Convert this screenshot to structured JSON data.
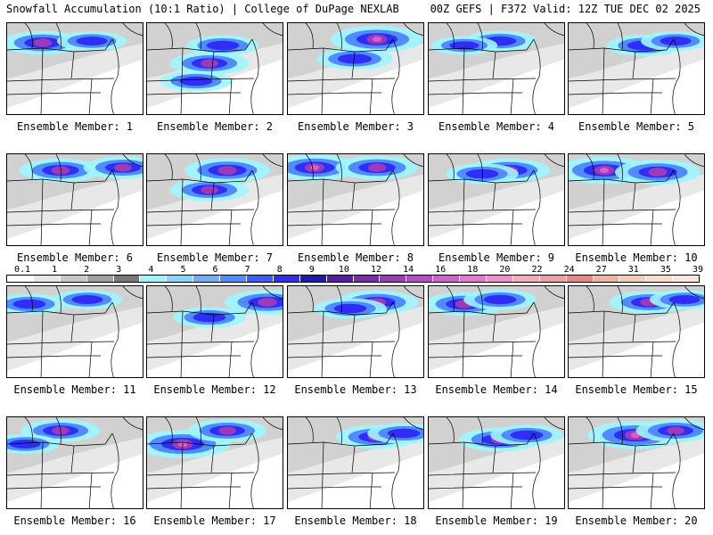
{
  "header": {
    "left": "Snowfall Accumulation (10:1 Ratio) | College of DuPage NEXLAB",
    "right": "00Z GEFS | F372 Valid: 12Z TUE DEC 02 2025"
  },
  "legend": {
    "labels": [
      "0.1",
      "1",
      "2",
      "3",
      "4",
      "5",
      "6",
      "7",
      "8",
      "9",
      "10",
      "12",
      "14",
      "16",
      "18",
      "20",
      "22",
      "24",
      "27",
      "31",
      "35",
      "39"
    ],
    "colors": [
      "#ffffff",
      "#e6e6e6",
      "#c8c8c8",
      "#a0a0a0",
      "#787878",
      "#9ff5ff",
      "#84d6ff",
      "#6eb0ff",
      "#4f8cff",
      "#3b5cff",
      "#2e2ef5",
      "#1b1bb3",
      "#5a1aa8",
      "#7a2aae",
      "#9d3ab8",
      "#b84cc4",
      "#d45fd0",
      "#e677d6",
      "#f090cc",
      "#f5aab8",
      "#f0a0a0",
      "#e88a80",
      "#f0b4a0",
      "#f5cdb4",
      "#fadcc8",
      "#fce6dc"
    ]
  },
  "members": [
    {
      "label": "Ensemble Member: 1",
      "snow": [
        [
          40,
          22,
          0.9
        ],
        [
          95,
          20,
          0.5
        ]
      ]
    },
    {
      "label": "Ensemble Member: 2",
      "snow": [
        [
          70,
          45,
          0.8
        ],
        [
          55,
          65,
          0.6
        ],
        [
          85,
          25,
          0.6
        ]
      ]
    },
    {
      "label": "Ensemble Member: 3",
      "snow": [
        [
          100,
          18,
          1.2
        ],
        [
          75,
          40,
          0.7
        ]
      ]
    },
    {
      "label": "Ensemble Member: 4",
      "snow": [
        [
          80,
          20,
          0.6
        ],
        [
          40,
          25,
          0.4
        ]
      ]
    },
    {
      "label": "Ensemble Member: 5",
      "snow": [
        [
          85,
          25,
          0.7
        ],
        [
          120,
          20,
          0.5
        ]
      ]
    },
    {
      "label": "Ensemble Member: 6",
      "snow": [
        [
          60,
          18,
          0.9
        ],
        [
          130,
          15,
          0.8
        ]
      ]
    },
    {
      "label": "Ensemble Member: 7",
      "snow": [
        [
          90,
          18,
          1.0
        ],
        [
          70,
          40,
          0.8
        ]
      ]
    },
    {
      "label": "Ensemble Member: 8",
      "snow": [
        [
          30,
          15,
          1.1
        ],
        [
          100,
          15,
          0.9
        ]
      ]
    },
    {
      "label": "Ensemble Member: 9",
      "snow": [
        [
          90,
          18,
          0.9
        ],
        [
          60,
          22,
          0.6
        ]
      ]
    },
    {
      "label": "Ensemble Member: 10",
      "snow": [
        [
          40,
          18,
          1.2
        ],
        [
          100,
          20,
          1.0
        ]
      ]
    },
    {
      "label": "Ensemble Member: 11",
      "snow": [
        [
          25,
          20,
          0.6
        ],
        [
          90,
          15,
          0.5
        ]
      ]
    },
    {
      "label": "Ensemble Member: 12",
      "snow": [
        [
          135,
          18,
          1.0
        ],
        [
          70,
          35,
          0.6
        ]
      ]
    },
    {
      "label": "Ensemble Member: 13",
      "snow": [
        [
          100,
          18,
          0.9
        ],
        [
          70,
          25,
          0.6
        ]
      ]
    },
    {
      "label": "Ensemble Member: 14",
      "snow": [
        [
          40,
          20,
          0.9
        ],
        [
          80,
          15,
          0.6
        ]
      ]
    },
    {
      "label": "Ensemble Member: 15",
      "snow": [
        [
          90,
          18,
          0.8
        ],
        [
          130,
          15,
          0.5
        ]
      ]
    },
    {
      "label": "Ensemble Member: 16",
      "snow": [
        [
          60,
          15,
          0.8
        ],
        [
          20,
          30,
          0.5
        ]
      ]
    },
    {
      "label": "Ensemble Member: 17",
      "snow": [
        [
          40,
          30,
          1.3
        ],
        [
          90,
          15,
          0.8
        ]
      ]
    },
    {
      "label": "Ensemble Member: 18",
      "snow": [
        [
          100,
          22,
          0.9
        ],
        [
          130,
          18,
          0.6
        ]
      ]
    },
    {
      "label": "Ensemble Member: 19",
      "snow": [
        [
          80,
          25,
          0.9
        ],
        [
          110,
          20,
          0.6
        ]
      ]
    },
    {
      "label": "Ensemble Member: 20",
      "snow": [
        [
          75,
          20,
          1.3
        ],
        [
          120,
          15,
          0.8
        ]
      ]
    }
  ]
}
